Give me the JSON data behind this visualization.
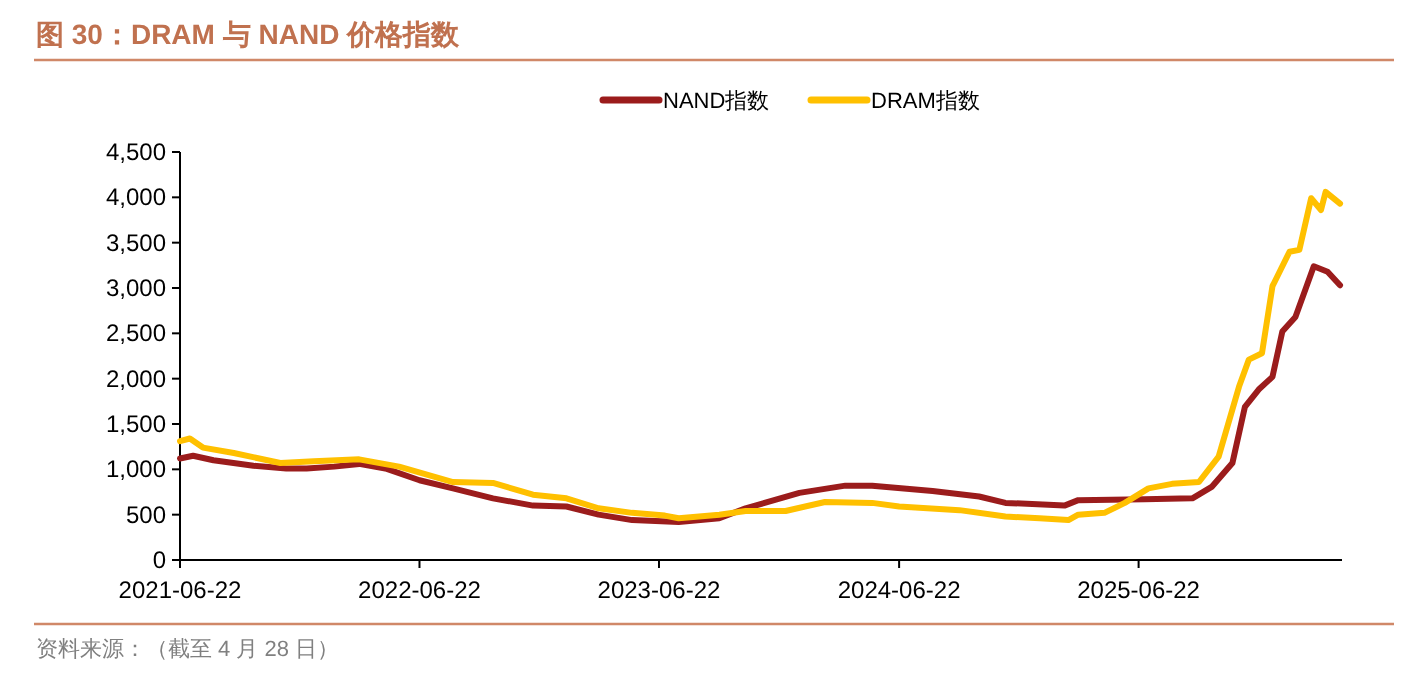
{
  "chart_data": {
    "type": "line",
    "title": "图 30：DRAM 与 NAND 价格指数",
    "annotations": [
      "资料来源：（截至 4 月 28 日）"
    ],
    "legend": "top",
    "xlim": [
      "2021-06-22",
      "2026-04-28"
    ],
    "xticks": [
      "2021-06-22",
      "2022-06-22",
      "2023-06-22",
      "2024-06-22",
      "2025-06-22"
    ],
    "ylim": [
      0,
      4500
    ],
    "yticks": [
      0,
      {
        "value": 500,
        "label": "500"
      },
      {
        "value": 1000,
        "label": "1,000"
      },
      {
        "value": 1500,
        "label": "1,500"
      },
      {
        "value": 2000,
        "label": "2,000"
      },
      {
        "value": 2500,
        "label": "2,500"
      },
      {
        "value": 3000,
        "label": "3,000"
      },
      {
        "value": 3500,
        "label": "3,500"
      },
      {
        "value": 4000,
        "label": "4,000"
      },
      {
        "value": 4500,
        "label": "4,500"
      }
    ],
    "series": [
      {
        "name": "NAND指数",
        "color": "#9b1c1c",
        "x": [
          "2021-06-22",
          "2021-07-12",
          "2021-08-12",
          "2021-10-12",
          "2021-12-01",
          "2022-01-01",
          "2022-02-12",
          "2022-03-22",
          "2022-05-01",
          "2022-06-22",
          "2022-08-12",
          "2022-10-12",
          "2022-12-12",
          "2023-02-01",
          "2023-03-22",
          "2023-05-12",
          "2023-07-22",
          "2023-09-22",
          "2023-11-01",
          "2024-01-22",
          "2024-04-01",
          "2024-05-12",
          "2024-08-12",
          "2024-10-22",
          "2024-12-01",
          "2025-03-01",
          "2025-03-22",
          "2025-07-01",
          "2025-09-12",
          "2025-10-12",
          "2025-11-12",
          "2025-12-01",
          "2025-12-22",
          "2026-01-12",
          "2026-01-27",
          "2026-02-16",
          "2026-03-01",
          "2026-03-16",
          "2026-04-06",
          "2026-04-25"
        ],
        "values": [
          1120,
          1150,
          1100,
          1040,
          1010,
          1010,
          1030,
          1060,
          1010,
          880,
          790,
          680,
          600,
          590,
          500,
          440,
          420,
          460,
          570,
          740,
          820,
          820,
          760,
          700,
          630,
          600,
          660,
          670,
          680,
          810,
          1070,
          1690,
          1880,
          2020,
          2520,
          2680,
          2940,
          3240,
          3180,
          3030
        ]
      },
      {
        "name": "DRAM指数",
        "color": "#ffc000",
        "x": [
          "2021-06-22",
          "2021-07-07",
          "2021-07-27",
          "2021-09-12",
          "2021-11-22",
          "2022-01-12",
          "2022-03-22",
          "2022-05-22",
          "2022-08-12",
          "2022-10-12",
          "2022-12-12",
          "2023-02-01",
          "2023-03-22",
          "2023-05-12",
          "2023-07-01",
          "2023-07-22",
          "2023-09-22",
          "2023-11-01",
          "2024-01-01",
          "2024-03-01",
          "2024-05-12",
          "2024-06-22",
          "2024-09-22",
          "2024-12-01",
          "2025-01-22",
          "2025-03-07",
          "2025-03-22",
          "2025-05-01",
          "2025-06-01",
          "2025-07-07",
          "2025-08-12",
          "2025-09-22",
          "2025-10-22",
          "2025-11-22",
          "2025-12-07",
          "2025-12-27",
          "2026-01-12",
          "2026-02-07",
          "2026-02-22",
          "2026-03-12",
          "2026-03-27",
          "2026-04-03",
          "2026-04-25"
        ],
        "values": [
          1310,
          1340,
          1240,
          1180,
          1070,
          1090,
          1110,
          1030,
          860,
          850,
          720,
          680,
          570,
          520,
          490,
          460,
          500,
          540,
          540,
          640,
          630,
          590,
          550,
          480,
          460,
          440,
          500,
          520,
          630,
          790,
          840,
          860,
          1140,
          1910,
          2210,
          2280,
          3020,
          3400,
          3420,
          3990,
          3860,
          4060,
          3930
        ]
      }
    ]
  }
}
